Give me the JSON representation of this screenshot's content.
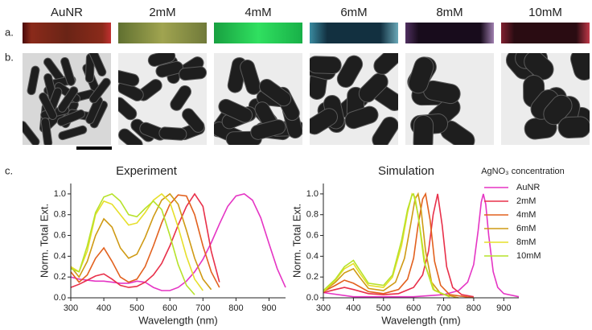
{
  "labels": {
    "columns": [
      "AuNR",
      "2mM",
      "4mM",
      "6mM",
      "8mM",
      "10mM"
    ],
    "rows": [
      "a.",
      "b.",
      "c."
    ]
  },
  "chart_data": [
    {
      "type": "line",
      "title": "Experiment",
      "x_label": "Wavelength (nm)",
      "y_label": "Norm. Total Ext.",
      "x": [
        300,
        325,
        350,
        375,
        400,
        425,
        450,
        475,
        500,
        525,
        550,
        575,
        600,
        625,
        650,
        675,
        700,
        725,
        750,
        775,
        800,
        825,
        850,
        875,
        900,
        925,
        950
      ],
      "xlim": [
        300,
        950
      ],
      "ylim": [
        0,
        1.1
      ],
      "xticks": [
        300,
        400,
        500,
        600,
        700,
        800,
        900
      ],
      "yticks": [
        {
          "value": 0,
          "label": "0.0"
        },
        0.2,
        0.4,
        0.6,
        0.8,
        {
          "value": 1,
          "label": "1.0"
        }
      ],
      "series": [
        {
          "color": "#e535c4",
          "values": [
            0.2,
            0.18,
            0.17,
            0.16,
            0.16,
            0.15,
            0.14,
            0.14,
            0.16,
            0.15,
            0.1,
            0.07,
            0.07,
            0.1,
            0.16,
            0.25,
            0.37,
            0.53,
            0.71,
            0.88,
            0.98,
            1.0,
            0.94,
            0.77,
            0.52,
            0.28,
            0.1
          ]
        },
        {
          "color": "#e8304a",
          "values": [
            0.1,
            0.13,
            0.17,
            0.21,
            0.23,
            0.18,
            0.12,
            0.1,
            0.11,
            0.15,
            0.22,
            0.33,
            0.5,
            0.7,
            0.88,
            1.0,
            0.88,
            0.45,
            0.15,
            null,
            null,
            null,
            null,
            null,
            null,
            null,
            null
          ]
        },
        {
          "color": "#e2611e",
          "values": [
            0.25,
            0.15,
            0.22,
            0.38,
            0.48,
            0.35,
            0.2,
            0.15,
            0.18,
            0.3,
            0.5,
            0.72,
            0.9,
            0.99,
            0.98,
            0.8,
            0.5,
            0.25,
            0.1,
            null,
            null,
            null,
            null,
            null,
            null,
            null,
            null
          ]
        },
        {
          "color": "#cf9a14",
          "values": [
            0.3,
            0.2,
            0.35,
            0.6,
            0.76,
            0.68,
            0.48,
            0.38,
            0.42,
            0.58,
            0.78,
            0.94,
            1.0,
            0.9,
            0.65,
            0.38,
            0.18,
            0.08,
            null,
            null,
            null,
            null,
            null,
            null,
            null,
            null,
            null
          ]
        },
        {
          "color": "#e6df2a",
          "values": [
            0.3,
            0.25,
            0.45,
            0.8,
            0.93,
            0.9,
            0.8,
            0.7,
            0.72,
            0.82,
            0.94,
            1.0,
            0.92,
            0.68,
            0.4,
            0.18,
            0.07,
            null,
            null,
            null,
            null,
            null,
            null,
            null,
            null,
            null,
            null
          ]
        },
        {
          "color": "#b6e22a",
          "values": [
            0.28,
            0.25,
            0.5,
            0.82,
            0.97,
            1.0,
            0.93,
            0.8,
            0.78,
            0.86,
            0.93,
            0.85,
            0.6,
            0.32,
            0.12,
            0.03,
            null,
            null,
            null,
            null,
            null,
            null,
            null,
            null,
            null,
            null,
            null
          ]
        }
      ]
    },
    {
      "type": "line",
      "title": "Simulation",
      "x_label": "Wavelength (nm)",
      "y_label": "Norm. Total Ext.",
      "legend_title": "AgNO₃ concentration",
      "legend": "right-outside",
      "xlim": [
        300,
        950
      ],
      "ylim": [
        0,
        1.1
      ],
      "xticks": [
        300,
        400,
        500,
        600,
        700,
        800,
        900
      ],
      "yticks": [
        {
          "value": 0,
          "label": "0.0"
        },
        0.2,
        0.4,
        0.6,
        0.8,
        {
          "value": 1,
          "label": "1.0"
        }
      ],
      "series": [
        {
          "name": "AuNR",
          "color": "#e535c4",
          "x": [
            300,
            400,
            500,
            600,
            700,
            750,
            780,
            800,
            815,
            825,
            832,
            840,
            850,
            865,
            880,
            900,
            950
          ],
          "values": [
            0.05,
            0.01,
            0.01,
            0.01,
            0.03,
            0.07,
            0.15,
            0.32,
            0.65,
            0.92,
            1.0,
            0.9,
            0.6,
            0.25,
            0.1,
            0.04,
            0.01
          ]
        },
        {
          "name": "2mM",
          "color": "#e8304a",
          "x": [
            300,
            340,
            370,
            400,
            450,
            500,
            550,
            600,
            630,
            650,
            665,
            680,
            695,
            710,
            730,
            760,
            800
          ],
          "values": [
            0.05,
            0.08,
            0.1,
            0.08,
            0.04,
            0.03,
            0.04,
            0.1,
            0.22,
            0.45,
            0.8,
            1.0,
            0.7,
            0.3,
            0.1,
            0.03,
            0.01
          ]
        },
        {
          "name": "4mM",
          "color": "#e2611e",
          "x": [
            300,
            340,
            370,
            400,
            450,
            500,
            550,
            580,
            600,
            615,
            630,
            640,
            655,
            670,
            690,
            720,
            800
          ],
          "values": [
            0.06,
            0.12,
            0.17,
            0.14,
            0.06,
            0.04,
            0.08,
            0.18,
            0.38,
            0.7,
            0.95,
            1.0,
            0.75,
            0.35,
            0.12,
            0.03,
            0
          ]
        },
        {
          "name": "6mM",
          "color": "#cf9a14",
          "x": [
            300,
            340,
            370,
            400,
            420,
            450,
            500,
            540,
            570,
            590,
            605,
            615,
            625,
            640,
            660,
            690,
            750
          ],
          "values": [
            0.06,
            0.15,
            0.24,
            0.28,
            0.2,
            0.09,
            0.07,
            0.15,
            0.38,
            0.7,
            0.95,
            1.0,
            0.85,
            0.45,
            0.15,
            0.04,
            0
          ]
        },
        {
          "name": "8mM",
          "color": "#e6df2a",
          "x": [
            300,
            340,
            370,
            400,
            420,
            450,
            500,
            530,
            560,
            580,
            595,
            605,
            620,
            640,
            670,
            720
          ],
          "values": [
            0.06,
            0.17,
            0.28,
            0.33,
            0.24,
            0.12,
            0.1,
            0.2,
            0.5,
            0.82,
            1.0,
            0.97,
            0.7,
            0.3,
            0.07,
            0.01
          ]
        },
        {
          "name": "10mM",
          "color": "#b6e22a",
          "x": [
            300,
            340,
            370,
            400,
            420,
            450,
            500,
            530,
            560,
            580,
            595,
            600,
            615,
            635,
            665,
            720
          ],
          "values": [
            0.07,
            0.18,
            0.3,
            0.36,
            0.27,
            0.14,
            0.12,
            0.22,
            0.55,
            0.85,
            0.99,
            1.0,
            0.8,
            0.35,
            0.08,
            0.01
          ]
        }
      ]
    }
  ]
}
